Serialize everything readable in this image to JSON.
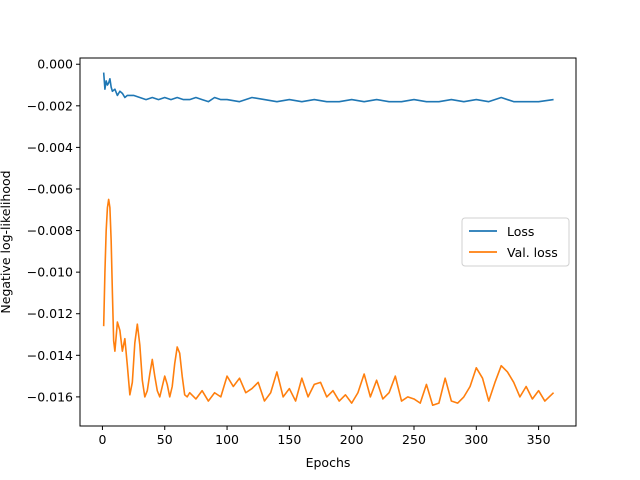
{
  "chart_data": {
    "type": "line",
    "title": "",
    "xlabel": "Epochs",
    "ylabel": "Negative log-likelihood",
    "xlim": [
      -18,
      380
    ],
    "ylim": [
      -0.0174,
      0.0003
    ],
    "xticks": [
      0,
      50,
      100,
      150,
      200,
      250,
      300,
      350
    ],
    "xtick_labels": [
      "0",
      "50",
      "100",
      "150",
      "200",
      "250",
      "300",
      "350"
    ],
    "yticks": [
      0.0,
      -0.002,
      -0.004,
      -0.006,
      -0.008,
      -0.01,
      -0.012,
      -0.014,
      -0.016
    ],
    "ytick_labels": [
      "0.000",
      "−0.002",
      "−0.004",
      "−0.006",
      "−0.008",
      "−0.010",
      "−0.012",
      "−0.014",
      "−0.016"
    ],
    "grid": false,
    "legend_position": "center-right",
    "series": [
      {
        "name": "Loss",
        "color": "#1f77b4",
        "x": [
          1,
          2,
          3,
          4,
          5,
          6,
          7,
          8,
          10,
          12,
          14,
          16,
          18,
          20,
          25,
          30,
          35,
          40,
          45,
          50,
          55,
          60,
          65,
          70,
          75,
          80,
          85,
          90,
          95,
          100,
          110,
          120,
          130,
          140,
          150,
          160,
          170,
          180,
          190,
          200,
          210,
          220,
          230,
          240,
          250,
          260,
          270,
          280,
          290,
          300,
          310,
          320,
          330,
          340,
          350,
          362
        ],
        "values": [
          -0.0004,
          -0.0012,
          -0.0008,
          -0.001,
          -0.0009,
          -0.0007,
          -0.0011,
          -0.0013,
          -0.0012,
          -0.0015,
          -0.0013,
          -0.0014,
          -0.0016,
          -0.0015,
          -0.0015,
          -0.0016,
          -0.0017,
          -0.0016,
          -0.0017,
          -0.0016,
          -0.0017,
          -0.0016,
          -0.0017,
          -0.0017,
          -0.0016,
          -0.0017,
          -0.0018,
          -0.0016,
          -0.0017,
          -0.0017,
          -0.0018,
          -0.0016,
          -0.0017,
          -0.0018,
          -0.0017,
          -0.0018,
          -0.0017,
          -0.0018,
          -0.0018,
          -0.0017,
          -0.0018,
          -0.0017,
          -0.0018,
          -0.0018,
          -0.0017,
          -0.0018,
          -0.0018,
          -0.0017,
          -0.0018,
          -0.0017,
          -0.0018,
          -0.0016,
          -0.0018,
          -0.0018,
          -0.0018,
          -0.0017
        ]
      },
      {
        "name": "Val. loss",
        "color": "#ff7f0e",
        "x": [
          1,
          2,
          3,
          4,
          5,
          6,
          7,
          8,
          9,
          10,
          12,
          14,
          16,
          18,
          20,
          22,
          24,
          26,
          28,
          30,
          32,
          34,
          36,
          38,
          40,
          42,
          44,
          46,
          48,
          50,
          52,
          54,
          56,
          58,
          60,
          62,
          64,
          66,
          68,
          70,
          75,
          80,
          85,
          90,
          95,
          100,
          105,
          110,
          115,
          120,
          125,
          130,
          135,
          140,
          145,
          150,
          155,
          160,
          165,
          170,
          175,
          180,
          185,
          190,
          195,
          200,
          205,
          210,
          215,
          220,
          225,
          230,
          235,
          240,
          245,
          250,
          255,
          260,
          265,
          270,
          275,
          280,
          285,
          290,
          295,
          300,
          305,
          310,
          315,
          320,
          325,
          330,
          335,
          340,
          345,
          350,
          355,
          362
        ],
        "values": [
          -0.0126,
          -0.01,
          -0.008,
          -0.0069,
          -0.0065,
          -0.0069,
          -0.0085,
          -0.011,
          -0.0133,
          -0.0138,
          -0.0124,
          -0.0128,
          -0.0138,
          -0.0132,
          -0.0145,
          -0.0159,
          -0.0153,
          -0.0134,
          -0.0125,
          -0.0135,
          -0.0152,
          -0.016,
          -0.0157,
          -0.0149,
          -0.0142,
          -0.015,
          -0.0157,
          -0.016,
          -0.0155,
          -0.015,
          -0.0154,
          -0.016,
          -0.0155,
          -0.0144,
          -0.0136,
          -0.0139,
          -0.015,
          -0.0159,
          -0.016,
          -0.0158,
          -0.0161,
          -0.0157,
          -0.0162,
          -0.0158,
          -0.016,
          -0.015,
          -0.0155,
          -0.0151,
          -0.0158,
          -0.0156,
          -0.0153,
          -0.0162,
          -0.0158,
          -0.0148,
          -0.016,
          -0.0156,
          -0.0162,
          -0.0151,
          -0.016,
          -0.0154,
          -0.0153,
          -0.016,
          -0.0157,
          -0.0162,
          -0.0159,
          -0.0163,
          -0.0158,
          -0.0149,
          -0.016,
          -0.0152,
          -0.0161,
          -0.0158,
          -0.015,
          -0.0162,
          -0.016,
          -0.0161,
          -0.0163,
          -0.0154,
          -0.0164,
          -0.0163,
          -0.0151,
          -0.0162,
          -0.0163,
          -0.016,
          -0.0155,
          -0.0146,
          -0.0151,
          -0.0162,
          -0.0153,
          -0.0145,
          -0.0148,
          -0.0153,
          -0.016,
          -0.0155,
          -0.0161,
          -0.0157,
          -0.0162,
          -0.0158
        ]
      }
    ]
  }
}
